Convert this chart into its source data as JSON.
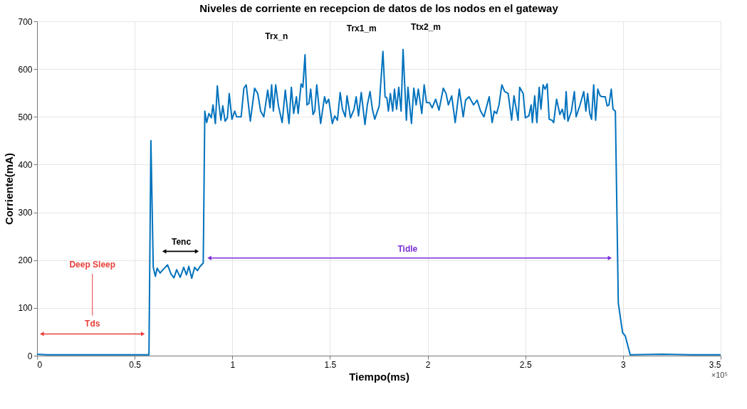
{
  "chart_data": {
    "type": "line",
    "title": "Niveles de corriente en recepcion de datos de los nodos en el gateway",
    "xlabel": "Tiempo(ms)",
    "ylabel": "Corriente(mA)",
    "xlim": [
      0,
      3.5
    ],
    "ylim": [
      0,
      700
    ],
    "xticks": [
      0,
      0.5,
      1,
      1.5,
      2,
      2.5,
      3,
      3.5
    ],
    "yticks": [
      0,
      100,
      200,
      300,
      400,
      500,
      600,
      700
    ],
    "grid": true,
    "marker": "none",
    "line_style": "solid",
    "series": [
      {
        "color": "#0072bd",
        "x": [
          0,
          0.05,
          0.2,
          0.4,
          0.56,
          0.573,
          0.583,
          0.595,
          0.606,
          0.615,
          0.63,
          0.645,
          0.668,
          0.686,
          0.701,
          0.715,
          0.733,
          0.751,
          0.765,
          0.777,
          0.792,
          0.807,
          0.821,
          0.835,
          0.851,
          0.859,
          0.8685,
          0.88,
          0.892,
          0.901,
          0.913,
          0.923,
          0.932,
          0.9415,
          0.951,
          0.963,
          0.9745,
          0.984,
          0.998,
          1.012,
          1.022,
          1.045,
          1.059,
          1.071,
          1.092,
          1.114,
          1.13,
          1.145,
          1.161,
          1.181,
          1.193,
          1.201,
          1.21,
          1.222,
          1.236,
          1.255,
          1.271,
          1.29,
          1.302,
          1.314,
          1.328,
          1.337,
          1.352,
          1.361,
          1.372,
          1.382,
          1.392,
          1.401,
          1.413,
          1.422,
          1.432,
          1.452,
          1.472,
          1.481,
          1.493,
          1.512,
          1.524,
          1.538,
          1.552,
          1.564,
          1.578,
          1.587,
          1.605,
          1.623,
          1.634,
          1.646,
          1.66,
          1.679,
          1.691,
          1.705,
          1.717,
          1.729,
          1.752,
          1.771,
          1.782,
          1.791,
          1.799,
          1.809,
          1.821,
          1.83,
          1.841,
          1.852,
          1.864,
          1.874,
          1.891,
          1.899,
          1.917,
          1.929,
          1.941,
          1.952,
          1.97,
          1.982,
          1.994,
          2.009,
          2.023,
          2.041,
          2.058,
          2.08,
          2.094,
          2.106,
          2.123,
          2.141,
          2.162,
          2.182,
          2.194,
          2.212,
          2.235,
          2.253,
          2.271,
          2.288,
          2.315,
          2.33,
          2.341,
          2.353,
          2.365,
          2.38,
          2.394,
          2.412,
          2.43,
          2.442,
          2.463,
          2.471,
          2.489,
          2.5,
          2.518,
          2.53,
          2.536,
          2.548,
          2.559,
          2.571,
          2.58,
          2.591,
          2.601,
          2.612,
          2.622,
          2.636,
          2.645,
          2.66,
          2.677,
          2.689,
          2.701,
          2.709,
          2.718,
          2.736,
          2.751,
          2.76,
          2.78,
          2.799,
          2.81,
          2.819,
          2.83,
          2.839,
          2.85,
          2.86,
          2.871,
          2.883,
          2.895,
          2.909,
          2.919,
          2.928,
          2.94,
          2.949,
          2.961,
          2.976,
          2.998,
          3.011,
          3.037,
          3.2,
          3.35,
          3.5
        ],
        "values": [
          3,
          2,
          2,
          2,
          2,
          2,
          450,
          185,
          166,
          183,
          173,
          180,
          190,
          171,
          163,
          180,
          164,
          185,
          169,
          187,
          162,
          185,
          178,
          187,
          194,
          512,
          488,
          507,
          498,
          525,
          486,
          565,
          525,
          493,
          523,
          491,
          498,
          549,
          495,
          512,
          500,
          500,
          560,
          567,
          491,
          560,
          549,
          512,
          500,
          556,
          519,
          567,
          512,
          567,
          523,
          488,
          556,
          486,
          562,
          507,
          542,
          507,
          569,
          562,
          630,
          525,
          528,
          558,
          505,
          512,
          567,
          486,
          542,
          528,
          537,
          486,
          502,
          493,
          551,
          516,
          500,
          544,
          498,
          516,
          542,
          502,
          551,
          484,
          525,
          553,
          516,
          495,
          523,
          637,
          542,
          540,
          512,
          549,
          512,
          558,
          516,
          562,
          512,
          641,
          493,
          562,
          486,
          560,
          525,
          558,
          507,
          567,
          530,
          530,
          519,
          537,
          514,
          560,
          549,
          525,
          544,
          488,
          558,
          500,
          535,
          542,
          525,
          535,
          512,
          500,
          542,
          488,
          512,
          507,
          525,
          567,
          553,
          549,
          493,
          544,
          493,
          562,
          549,
          498,
          502,
          525,
          488,
          544,
          488,
          562,
          516,
          567,
          558,
          569,
          495,
          493,
          488,
          537,
          505,
          516,
          495,
          553,
          491,
          512,
          553,
          500,
          525,
          553,
          512,
          549,
          507,
          495,
          567,
          493,
          558,
          544,
          542,
          542,
          523,
          525,
          558,
          516,
          512,
          110,
          48,
          42,
          2,
          3,
          2,
          2
        ]
      }
    ],
    "annotations": [
      "Tds",
      "Tenc",
      "Tidle",
      "Deep Sleep",
      {
        "text": "Trx_n",
        "x": 1.372,
        "y": 630
      },
      {
        "text": "Trx1_m",
        "x": 1.771,
        "y": 637
      },
      {
        "text": "Ttx2_m",
        "x": 1.874,
        "y": 641
      },
      "×10⁵"
    ]
  }
}
